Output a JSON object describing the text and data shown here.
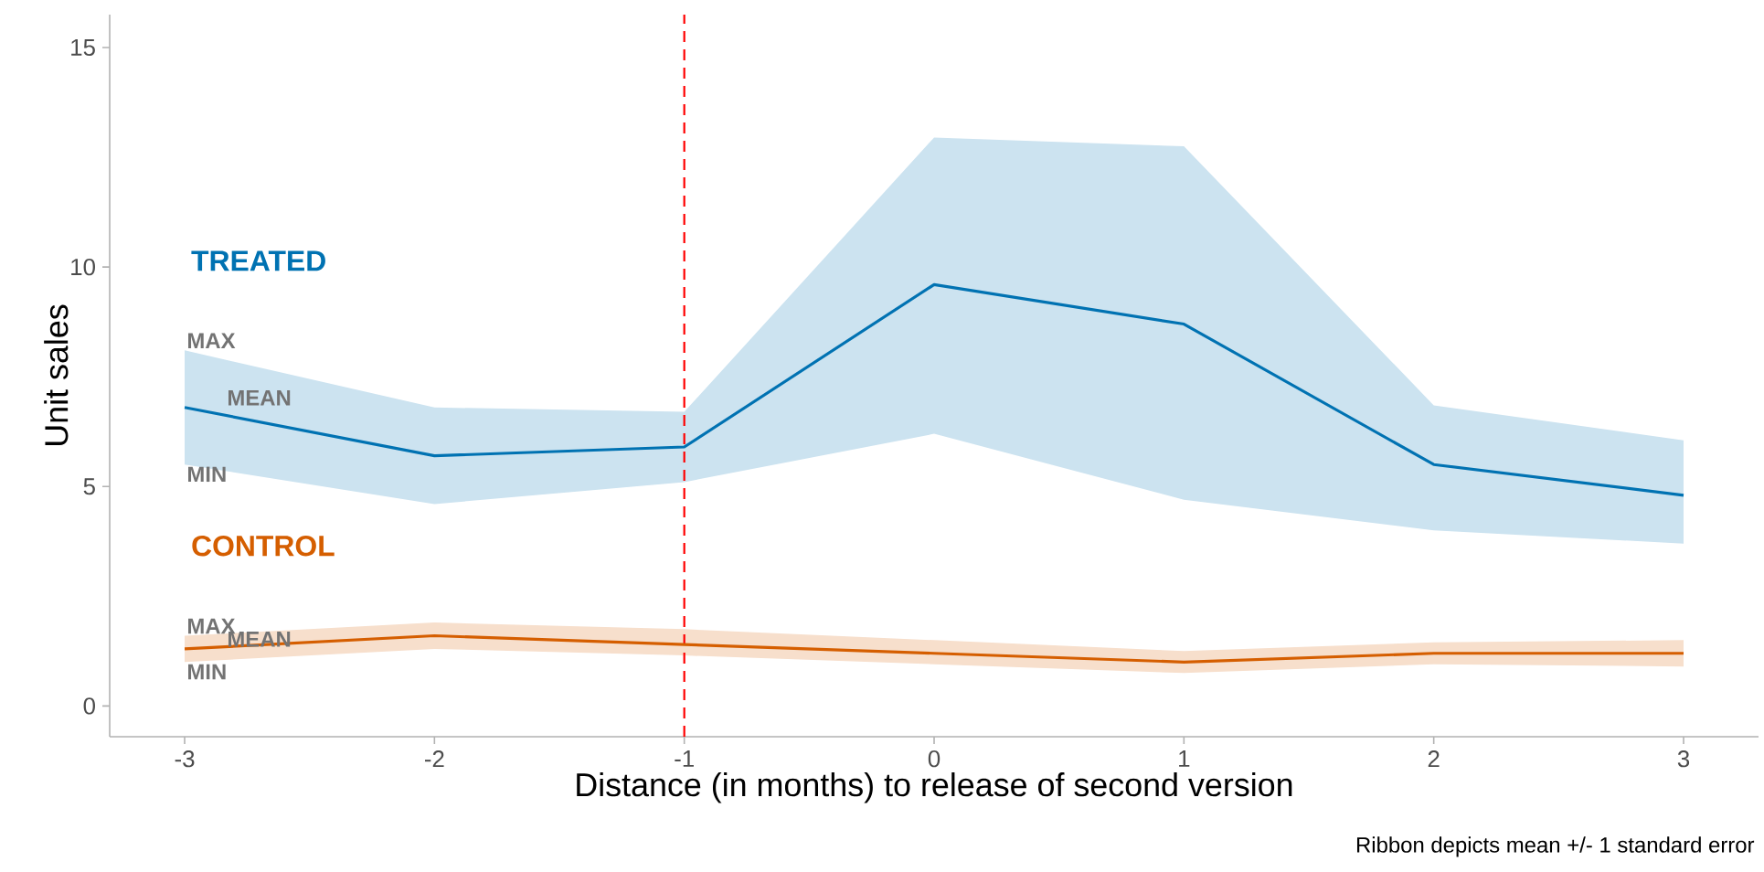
{
  "chart_data": {
    "type": "line",
    "xlabel": "Distance (in months) to release of second version",
    "ylabel": "Unit sales",
    "x": [
      -3,
      -2,
      -1,
      0,
      1,
      2,
      3
    ],
    "series": [
      {
        "name": "TREATED",
        "color": "#0072b2",
        "values": [
          6.8,
          5.7,
          5.9,
          9.6,
          8.7,
          5.5,
          4.8
        ],
        "lower": [
          5.5,
          4.6,
          5.1,
          6.2,
          4.7,
          4.0,
          3.7
        ],
        "upper": [
          8.1,
          6.8,
          6.7,
          12.95,
          12.75,
          6.85,
          6.05
        ]
      },
      {
        "name": "CONTROL",
        "color": "#d55e00",
        "values": [
          1.3,
          1.6,
          1.4,
          1.2,
          1.0,
          1.2,
          1.2
        ],
        "lower": [
          1.0,
          1.3,
          1.15,
          0.95,
          0.75,
          0.95,
          0.9
        ],
        "upper": [
          1.6,
          1.9,
          1.75,
          1.5,
          1.25,
          1.45,
          1.5
        ]
      }
    ],
    "xlim": [
      -3.3,
      3.3
    ],
    "ylim": [
      -0.7,
      15.75
    ],
    "xticks": [
      -3,
      -2,
      -1,
      0,
      1,
      2,
      3
    ],
    "yticks": [
      0,
      5,
      10,
      15
    ],
    "ref_lines": [
      {
        "axis": "x",
        "value": -1,
        "color": "#ff0000",
        "line_style": "dashed"
      }
    ],
    "annotations": [
      "MAX",
      "MEAN",
      "MIN",
      "MAX",
      "MEAN",
      "MIN",
      "Ribbon depicts mean +/- 1 standard error"
    ],
    "grid": false,
    "legend": false,
    "marker": "none",
    "line_style": "solid"
  }
}
